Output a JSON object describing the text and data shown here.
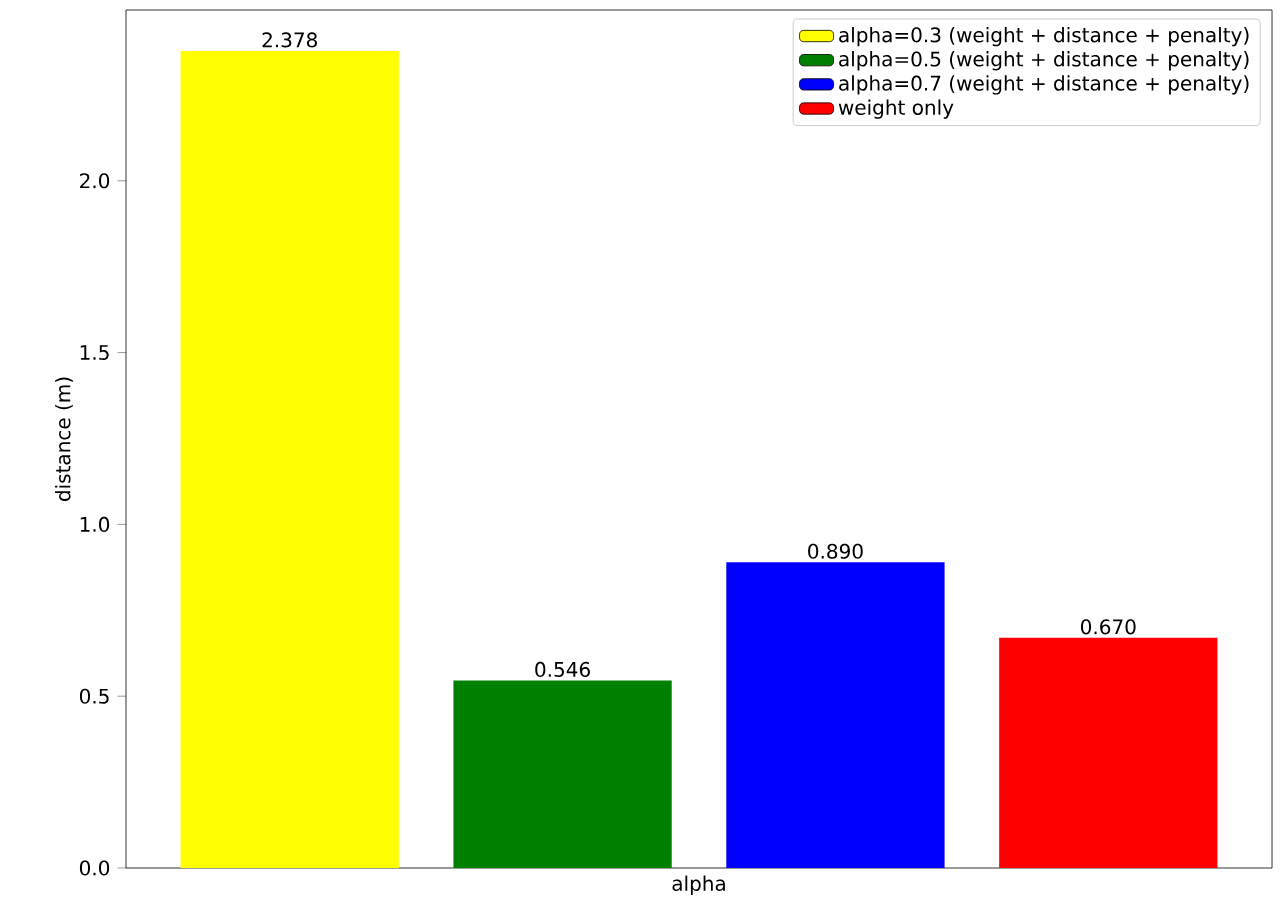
{
  "chart_data": {
    "type": "bar",
    "xlabel": "alpha",
    "ylabel": "distance (m)",
    "categories": [
      null
    ],
    "series": [
      {
        "name": "alpha=0.3 (weight + distance + penalty)",
        "color": "#ffff00",
        "values": [
          2.378
        ],
        "value_labels": [
          "2.378"
        ]
      },
      {
        "name": "alpha=0.5 (weight + distance + penalty)",
        "color": "#008000",
        "values": [
          0.546
        ],
        "value_labels": [
          "0.546"
        ]
      },
      {
        "name": "alpha=0.7 (weight + distance + penalty)",
        "color": "#0000ff",
        "values": [
          0.89
        ],
        "value_labels": [
          "0.890"
        ]
      },
      {
        "name": "weight only",
        "color": "#ff0000",
        "values": [
          0.67
        ],
        "value_labels": [
          "0.670"
        ]
      }
    ],
    "ylim": [
      0,
      2.497
    ],
    "yticks": [
      {
        "value": 0,
        "label": "0.0"
      },
      {
        "value": 0.5,
        "label": "0.5"
      },
      {
        "value": 1,
        "label": "1.0"
      },
      {
        "value": 1.5,
        "label": "1.5"
      },
      {
        "value": 2,
        "label": "2.0"
      }
    ],
    "legend": "top right",
    "grid": false
  }
}
